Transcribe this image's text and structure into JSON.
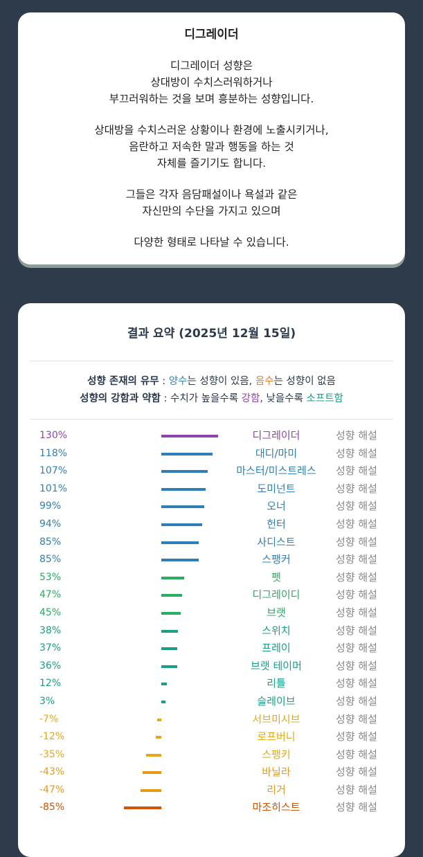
{
  "card1": {
    "title": "디그레이더",
    "para1": [
      "디그레이더 성향은",
      "상대방이 수치스러워하거나",
      "부끄러워하는 것을 보며 흥분하는 성향입니다."
    ],
    "para2": [
      "상대방을 수치스러운 상황이나 환경에 노출시키거나,",
      "음란하고 저속한 말과 행동을 하는 것",
      "자체를 즐기기도 합니다."
    ],
    "para3": [
      "그들은 각자 음담패설이나 욕설과 같은",
      "자신만의 수단을 가지고 있으며"
    ],
    "para4": [
      "다양한 형태로 나타날 수 있습니다."
    ]
  },
  "summary": {
    "title": "결과 요약 (2025년 12월 15일)",
    "legend1": {
      "label": "성향 존재의 유무",
      "sep": " : ",
      "pos": "양수",
      "mid1": "는 성향이 있음, ",
      "neg": "음수",
      "end1": "는 성향이 없음"
    },
    "legend2": {
      "label": "성향의 강함과 약함",
      "sep": " : 수치가 높을수록 ",
      "strong": "강함",
      "mid2": ", 낮을수록 ",
      "soft": "소프트함"
    },
    "colors": {
      "pos": "#2e86c1",
      "neg": "#e67e22",
      "strong": "#8e44ad",
      "soft": "#16a085",
      "text": "#2b3a4a",
      "interp": "#888888"
    },
    "interp_label": "성향 해설",
    "rows": [
      {
        "pct": "130%",
        "value": 130,
        "name": "디그레이더",
        "color": "#8e44ad"
      },
      {
        "pct": "118%",
        "value": 118,
        "name": "대디/마미",
        "color": "#2e7fb8"
      },
      {
        "pct": "107%",
        "value": 107,
        "name": "마스터/미스트레스",
        "color": "#2e7fb8"
      },
      {
        "pct": "101%",
        "value": 101,
        "name": "도미넌트",
        "color": "#2e7fb8"
      },
      {
        "pct": "99%",
        "value": 99,
        "name": "오너",
        "color": "#2e7fb8"
      },
      {
        "pct": "94%",
        "value": 94,
        "name": "헌터",
        "color": "#2e7fb8"
      },
      {
        "pct": "85%",
        "value": 85,
        "name": "사디스트",
        "color": "#2e7fb8"
      },
      {
        "pct": "85%",
        "value": 85,
        "name": "스팽커",
        "color": "#2e7fb8"
      },
      {
        "pct": "53%",
        "value": 53,
        "name": "펫",
        "color": "#27ae60"
      },
      {
        "pct": "47%",
        "value": 47,
        "name": "디그레이디",
        "color": "#27ae60"
      },
      {
        "pct": "45%",
        "value": 45,
        "name": "브랫",
        "color": "#27ae60"
      },
      {
        "pct": "38%",
        "value": 38,
        "name": "스위치",
        "color": "#17a085"
      },
      {
        "pct": "37%",
        "value": 37,
        "name": "프레이",
        "color": "#17a085"
      },
      {
        "pct": "36%",
        "value": 36,
        "name": "브랫 테이머",
        "color": "#17a085"
      },
      {
        "pct": "12%",
        "value": 12,
        "name": "리틀",
        "color": "#17a085"
      },
      {
        "pct": "3%",
        "value": 3,
        "name": "슬레이브",
        "color": "#17a085"
      },
      {
        "pct": "-7%",
        "value": -7,
        "name": "서브미시브",
        "color": "#e6a817"
      },
      {
        "pct": "-12%",
        "value": -12,
        "name": "로프버니",
        "color": "#e6a817"
      },
      {
        "pct": "-35%",
        "value": -35,
        "name": "스팽키",
        "color": "#e6a817"
      },
      {
        "pct": "-43%",
        "value": -43,
        "name": "바닐라",
        "color": "#e69a17"
      },
      {
        "pct": "-47%",
        "value": -47,
        "name": "리거",
        "color": "#e69a17"
      },
      {
        "pct": "-85%",
        "value": -85,
        "name": "마조히스트",
        "color": "#d35400"
      }
    ]
  }
}
